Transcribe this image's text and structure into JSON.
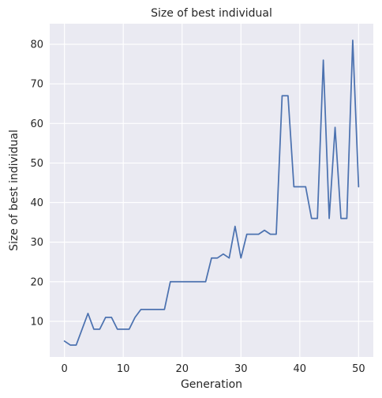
{
  "chart_data": {
    "type": "line",
    "title": "Size of best individual",
    "xlabel": "Generation",
    "ylabel": "Size of best individual",
    "xlim": [
      -2.5,
      52.5
    ],
    "ylim": [
      1,
      85.2
    ],
    "xticks": [
      0,
      10,
      20,
      30,
      40,
      50
    ],
    "yticks": [
      10,
      20,
      30,
      40,
      50,
      60,
      70,
      80
    ],
    "grid": true,
    "colors": {
      "plot_background": "#EAEAF2",
      "grid": "#FFFFFF",
      "line": "#4C72B0"
    },
    "series": [
      {
        "x": [
          0,
          1,
          2,
          3,
          4,
          5,
          6,
          7,
          8,
          9,
          10,
          11,
          12,
          13,
          14,
          15,
          16,
          17,
          18,
          19,
          20,
          21,
          22,
          23,
          24,
          25,
          26,
          27,
          28,
          29,
          30,
          31,
          32,
          33,
          34,
          35,
          36,
          37,
          38,
          39,
          40,
          41,
          42,
          43,
          44,
          45,
          46,
          47,
          48,
          49,
          50
        ],
        "values": [
          5,
          4,
          4,
          8,
          12,
          8,
          8,
          11,
          11,
          8,
          8,
          8,
          11,
          13,
          13,
          13,
          13,
          13,
          20,
          20,
          20,
          20,
          20,
          20,
          20,
          26,
          26,
          27,
          26,
          34,
          26,
          32,
          32,
          32,
          33,
          32,
          32,
          67,
          67,
          44,
          44,
          44,
          36,
          36,
          76,
          36,
          59,
          36,
          36,
          81,
          44
        ]
      }
    ]
  }
}
